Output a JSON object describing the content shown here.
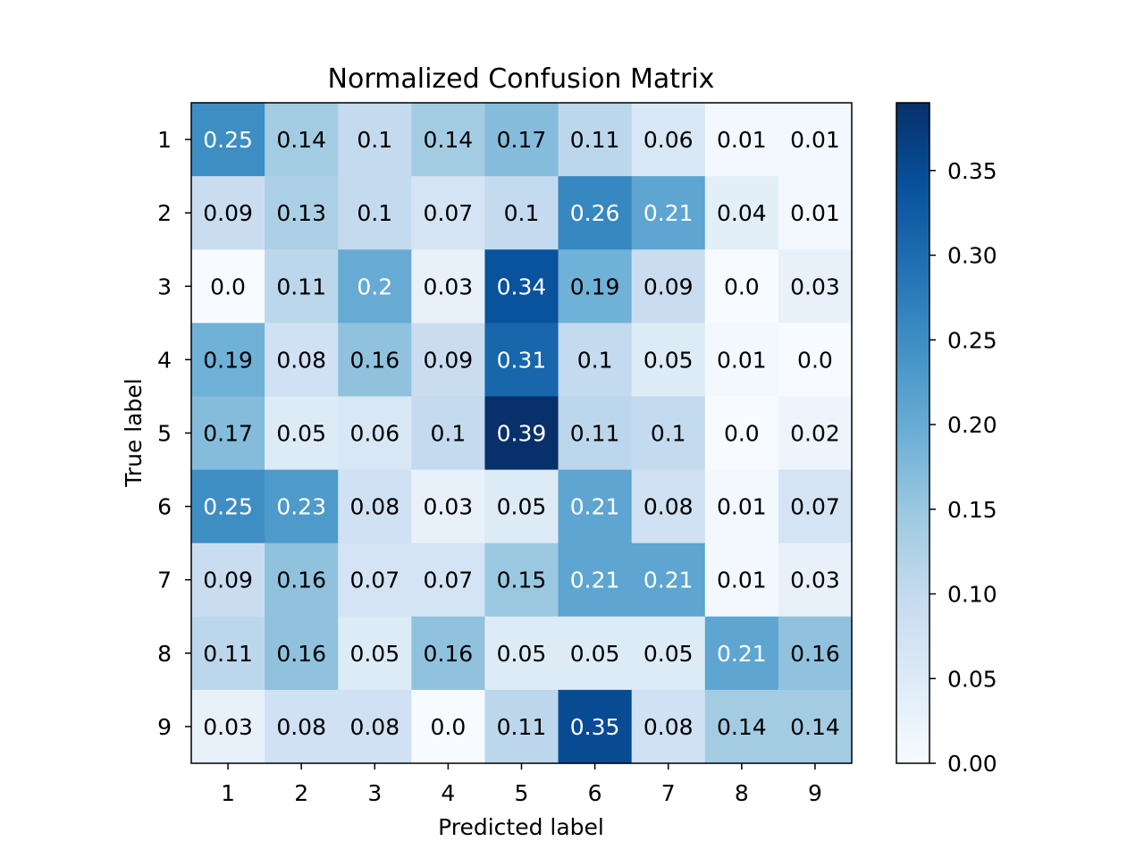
{
  "chart_data": {
    "type": "heatmap",
    "title": "Normalized Confusion Matrix",
    "xlabel": "Predicted label",
    "ylabel": "True label",
    "x_categories": [
      "1",
      "2",
      "3",
      "4",
      "5",
      "6",
      "7",
      "8",
      "9"
    ],
    "y_categories": [
      "1",
      "2",
      "3",
      "4",
      "5",
      "6",
      "7",
      "8",
      "9"
    ],
    "values": [
      [
        0.25,
        0.14,
        0.1,
        0.14,
        0.17,
        0.11,
        0.06,
        0.01,
        0.01
      ],
      [
        0.09,
        0.13,
        0.1,
        0.07,
        0.1,
        0.26,
        0.21,
        0.04,
        0.01
      ],
      [
        0.0,
        0.11,
        0.2,
        0.03,
        0.34,
        0.19,
        0.09,
        0.0,
        0.03
      ],
      [
        0.19,
        0.08,
        0.16,
        0.09,
        0.31,
        0.1,
        0.05,
        0.01,
        0.0
      ],
      [
        0.17,
        0.05,
        0.06,
        0.1,
        0.39,
        0.11,
        0.1,
        0.0,
        0.02
      ],
      [
        0.25,
        0.23,
        0.08,
        0.03,
        0.05,
        0.21,
        0.08,
        0.01,
        0.07
      ],
      [
        0.09,
        0.16,
        0.07,
        0.07,
        0.15,
        0.21,
        0.21,
        0.01,
        0.03
      ],
      [
        0.11,
        0.16,
        0.05,
        0.16,
        0.05,
        0.05,
        0.05,
        0.21,
        0.16
      ],
      [
        0.03,
        0.08,
        0.08,
        0.0,
        0.11,
        0.35,
        0.08,
        0.14,
        0.14
      ]
    ],
    "value_labels": [
      [
        "0.25",
        "0.14",
        "0.1",
        "0.14",
        "0.17",
        "0.11",
        "0.06",
        "0.01",
        "0.01"
      ],
      [
        "0.09",
        "0.13",
        "0.1",
        "0.07",
        "0.1",
        "0.26",
        "0.21",
        "0.04",
        "0.01"
      ],
      [
        "0.0",
        "0.11",
        "0.2",
        "0.03",
        "0.34",
        "0.19",
        "0.09",
        "0.0",
        "0.03"
      ],
      [
        "0.19",
        "0.08",
        "0.16",
        "0.09",
        "0.31",
        "0.1",
        "0.05",
        "0.01",
        "0.0"
      ],
      [
        "0.17",
        "0.05",
        "0.06",
        "0.1",
        "0.39",
        "0.11",
        "0.1",
        "0.0",
        "0.02"
      ],
      [
        "0.25",
        "0.23",
        "0.08",
        "0.03",
        "0.05",
        "0.21",
        "0.08",
        "0.01",
        "0.07"
      ],
      [
        "0.09",
        "0.16",
        "0.07",
        "0.07",
        "0.15",
        "0.21",
        "0.21",
        "0.01",
        "0.03"
      ],
      [
        "0.11",
        "0.16",
        "0.05",
        "0.16",
        "0.05",
        "0.05",
        "0.05",
        "0.21",
        "0.16"
      ],
      [
        "0.03",
        "0.08",
        "0.08",
        "0.0",
        "0.11",
        "0.35",
        "0.08",
        "0.14",
        "0.14"
      ]
    ],
    "colormap": "Blues",
    "colormap_stops": [
      "#f7fbff",
      "#deebf7",
      "#c6dbef",
      "#9ecae1",
      "#6baed6",
      "#4292c6",
      "#2171b5",
      "#08519c",
      "#08306b"
    ],
    "label_text_colors": {
      "dark_cell": "#ffffff",
      "light_cell": "#000000"
    },
    "text_color_threshold": 0.195,
    "colorbar": {
      "range": [
        0.0,
        0.39
      ],
      "ticks": [
        0.0,
        0.05,
        0.1,
        0.15,
        0.2,
        0.25,
        0.3,
        0.35
      ],
      "tick_labels": [
        "0.00",
        "0.05",
        "0.10",
        "0.15",
        "0.20",
        "0.25",
        "0.30",
        "0.35"
      ]
    },
    "grid": false,
    "legend": "colorbar-right"
  }
}
